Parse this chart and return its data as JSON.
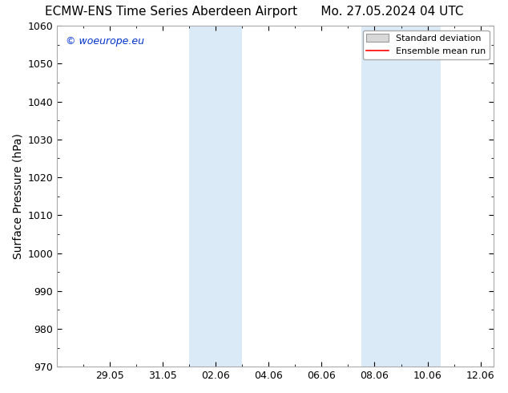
{
  "title_left": "ECMW-ENS Time Series Aberdeen Airport",
  "title_right": "Mo. 27.05.2024 04 UTC",
  "ylabel": "Surface Pressure (hPa)",
  "ylim": [
    970,
    1060
  ],
  "yticks": [
    970,
    980,
    990,
    1000,
    1010,
    1020,
    1030,
    1040,
    1050,
    1060
  ],
  "xlim": [
    0.0,
    16.5
  ],
  "xtick_positions": [
    2,
    4,
    6,
    8,
    10,
    12,
    14,
    16
  ],
  "xtick_labels": [
    "29.05",
    "31.05",
    "02.06",
    "04.06",
    "06.06",
    "08.06",
    "10.06",
    "12.06"
  ],
  "shaded_bands": [
    {
      "x_start": 5.0,
      "x_end": 7.0,
      "color": "#daeaf7"
    },
    {
      "x_start": 11.5,
      "x_end": 14.5,
      "color": "#daeaf7"
    }
  ],
  "watermark_text": "© woeurope.eu",
  "watermark_color": "#0033cc",
  "legend_sd_facecolor": "#d8d8d8",
  "legend_sd_edgecolor": "#999999",
  "legend_mean_color": "#ff0000",
  "bg_color": "#ffffff",
  "plot_bg_color": "#ffffff",
  "spine_color": "#aaaaaa",
  "title_fontsize": 11,
  "ylabel_fontsize": 10,
  "tick_fontsize": 9,
  "watermark_fontsize": 9,
  "legend_fontsize": 8
}
